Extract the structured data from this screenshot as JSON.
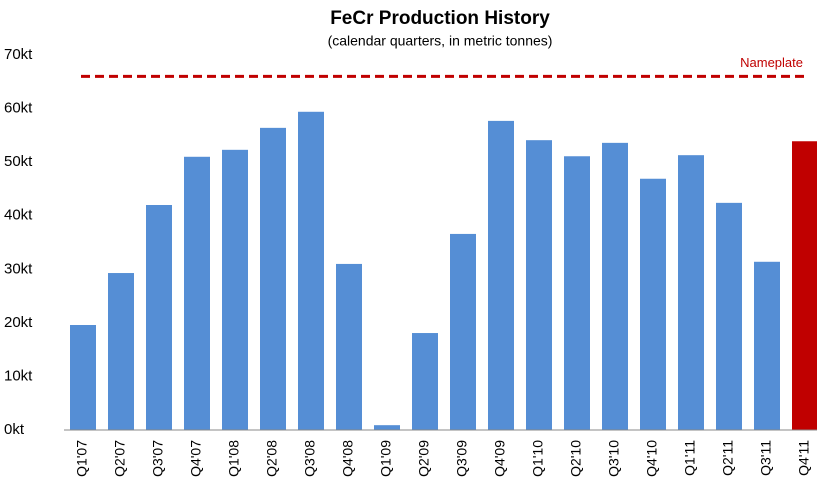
{
  "chart_data": {
    "type": "bar",
    "title": "FeCr Production History",
    "subtitle": "(calendar quarters, in metric tonnes)",
    "categories": [
      "Q1'07",
      "Q2'07",
      "Q3'07",
      "Q4'07",
      "Q1'08",
      "Q2'08",
      "Q3'08",
      "Q4'08",
      "Q1'09",
      "Q2'09",
      "Q3'09",
      "Q4'09",
      "Q1'10",
      "Q2'10",
      "Q3'10",
      "Q4'10",
      "Q1'11",
      "Q2'11",
      "Q3'11",
      "Q4'11"
    ],
    "values": [
      19.6,
      29.3,
      42,
      51,
      52.3,
      56.4,
      59.4,
      31,
      0.9,
      18.1,
      36.6,
      57.7,
      54.1,
      51.1,
      53.6,
      46.9,
      51.3,
      42.4,
      31.4,
      53.9
    ],
    "colors": [
      "#558ed5",
      "#558ed5",
      "#558ed5",
      "#558ed5",
      "#558ed5",
      "#558ed5",
      "#558ed5",
      "#558ed5",
      "#558ed5",
      "#558ed5",
      "#558ed5",
      "#558ed5",
      "#558ed5",
      "#558ed5",
      "#558ed5",
      "#558ed5",
      "#558ed5",
      "#558ed5",
      "#558ed5",
      "#c00000"
    ],
    "ylim": [
      0,
      70
    ],
    "yticks": [
      {
        "value": 0,
        "label": "0kt"
      },
      {
        "value": 10,
        "label": "10kt"
      },
      {
        "value": 20,
        "label": "20kt"
      },
      {
        "value": 30,
        "label": "30kt"
      },
      {
        "value": 40,
        "label": "40kt"
      },
      {
        "value": 50,
        "label": "50kt"
      },
      {
        "value": 60,
        "label": "60kt"
      },
      {
        "value": 70,
        "label": "70kt"
      }
    ],
    "grid": false,
    "reference_line": {
      "label": "Nameplate",
      "value": 66,
      "color": "#c00000"
    }
  }
}
